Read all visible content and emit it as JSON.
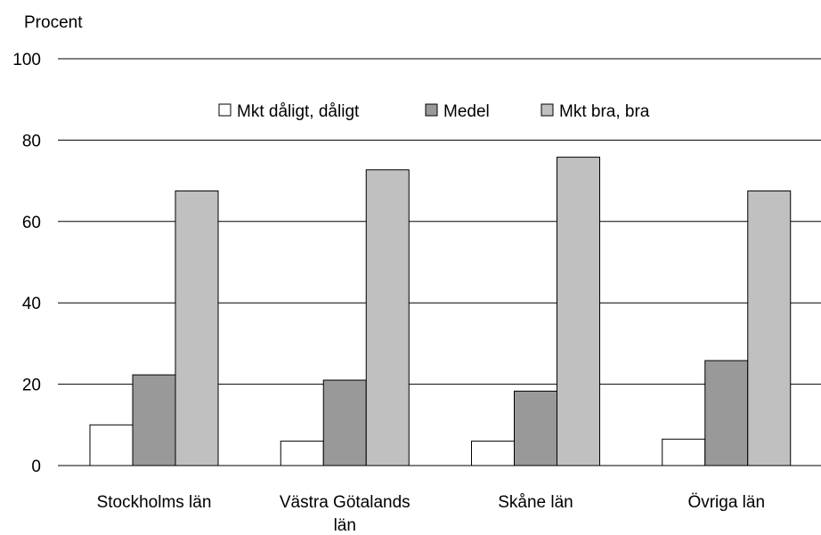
{
  "chart_data": {
    "type": "bar",
    "ylabel": "Procent",
    "ylim": [
      0,
      100
    ],
    "yticks": [
      0,
      20,
      40,
      60,
      80,
      100
    ],
    "grid": true,
    "legend_position": "top",
    "categories": [
      [
        "Stockholms län"
      ],
      [
        "Västra Götalands",
        "län"
      ],
      [
        "Skåne län"
      ],
      [
        "Övriga län"
      ]
    ],
    "series": [
      {
        "name": "Mkt dåligt, dåligt",
        "color": "#ffffff",
        "values": [
          10,
          6,
          6,
          6.5
        ]
      },
      {
        "name": "Medel",
        "color": "#999999",
        "values": [
          22.3,
          21,
          18.3,
          25.8
        ]
      },
      {
        "name": "Mkt bra, bra",
        "color": "#c0c0c0",
        "values": [
          67.5,
          72.7,
          75.8,
          67.5
        ]
      }
    ]
  }
}
